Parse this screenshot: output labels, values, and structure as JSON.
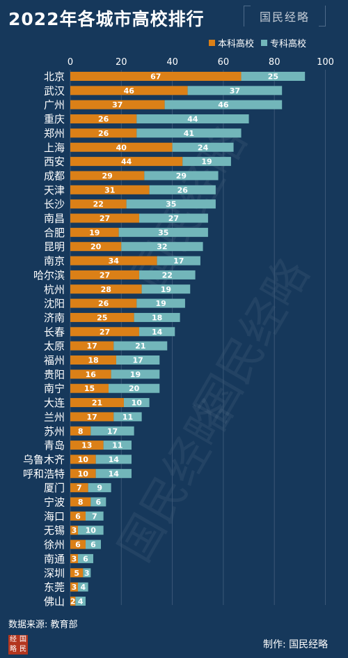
{
  "title": "2022年各城市高校排行",
  "brand": "国民经略",
  "logo_chars": [
    "经",
    "国",
    "略",
    "民"
  ],
  "source": "数据来源: 教育部",
  "credit": "制作: 国民经略",
  "colors": {
    "background": "#16385b",
    "undergrad": "#db8017",
    "junior": "#72b6ba",
    "grid": "#3b5877"
  },
  "chart_data": {
    "type": "bar",
    "orientation": "horizontal",
    "stacked": true,
    "xlim": [
      0,
      100
    ],
    "xticks": [
      "0",
      "20",
      "40",
      "60",
      "80",
      "100"
    ],
    "categories": [
      "北京",
      "武汉",
      "广州",
      "重庆",
      "郑州",
      "上海",
      "西安",
      "成都",
      "天津",
      "长沙",
      "南昌",
      "合肥",
      "昆明",
      "南京",
      "哈尔滨",
      "杭州",
      "沈阳",
      "济南",
      "长春",
      "太原",
      "福州",
      "贵阳",
      "南宁",
      "大连",
      "兰州",
      "苏州",
      "青岛",
      "乌鲁木齐",
      "呼和浩特",
      "厦门",
      "宁波",
      "海口",
      "无锡",
      "徐州",
      "南通",
      "深圳",
      "东莞",
      "佛山"
    ],
    "series": [
      {
        "name": "本科高校",
        "color": "#db8017",
        "values": [
          67,
          46,
          37,
          26,
          26,
          40,
          44,
          29,
          31,
          22,
          27,
          19,
          20,
          34,
          27,
          28,
          26,
          25,
          27,
          17,
          18,
          16,
          15,
          21,
          17,
          8,
          13,
          10,
          10,
          7,
          8,
          6,
          3,
          6,
          3,
          5,
          3,
          2
        ]
      },
      {
        "name": "专科高校",
        "color": "#72b6ba",
        "values": [
          25,
          37,
          46,
          44,
          41,
          24,
          19,
          29,
          26,
          35,
          27,
          35,
          32,
          17,
          22,
          19,
          19,
          18,
          14,
          21,
          17,
          19,
          20,
          10,
          11,
          17,
          11,
          14,
          14,
          9,
          6,
          7,
          10,
          6,
          6,
          3,
          4,
          4
        ]
      }
    ],
    "grid": true,
    "legend": "top-right"
  }
}
